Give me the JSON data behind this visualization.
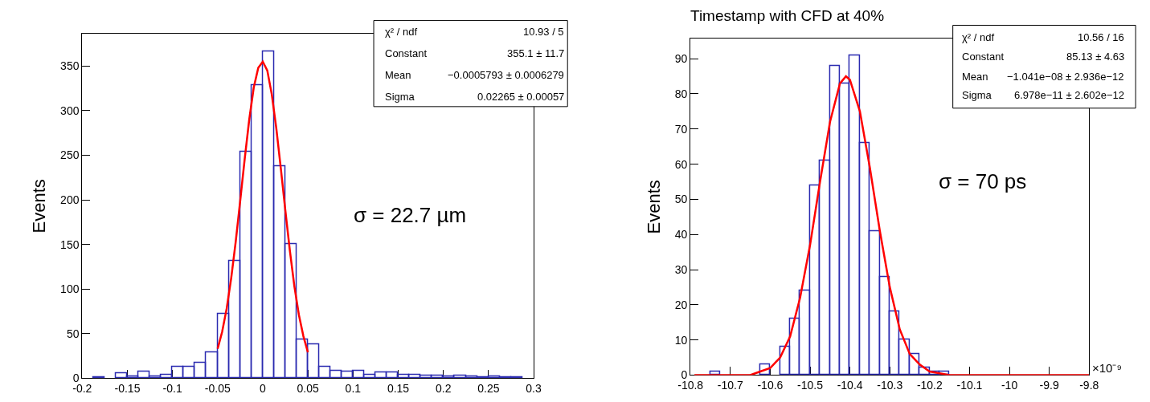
{
  "chart_data": [
    {
      "type": "histogram",
      "ylabel": "Events",
      "annotations": [
        "σ = 22.7 µm",
        "χ² / ndf",
        "10.93 / 5",
        "Constant",
        "355.1 ± 11.7",
        "Mean",
        "−0.0005793 ± 0.0006279",
        "Sigma",
        "0.02265 ± 0.00057"
      ],
      "series": [
        {
          "color": "#2a2ab0",
          "bins": [
            -0.2,
            -0.1875,
            -0.175,
            -0.1625,
            -0.15,
            -0.1375,
            -0.125,
            -0.1125,
            -0.1,
            -0.0875,
            -0.075,
            -0.0625,
            -0.05,
            -0.0375,
            -0.025,
            -0.0125,
            0,
            0.0125,
            0.025,
            0.0375,
            0.05,
            0.0625,
            0.075,
            0.0875,
            0.1,
            0.1125,
            0.125,
            0.1375,
            0.15,
            0.1625,
            0.175,
            0.1875,
            0.2,
            0.2125,
            0.225,
            0.2375,
            0.25,
            0.2625,
            0.275,
            0.2875,
            0.3
          ],
          "values": [
            0,
            1,
            0,
            5,
            2,
            7,
            2,
            4,
            13,
            13,
            17,
            29,
            72,
            131,
            254,
            328,
            366,
            238,
            150,
            43,
            38,
            13,
            8,
            7,
            8,
            4,
            6,
            6,
            4,
            4,
            3,
            3,
            2,
            3,
            2,
            1,
            2,
            1,
            1,
            0
          ]
        },
        {
          "type": "line",
          "color": "#ff0000",
          "x": [
            -0.05,
            -0.045,
            -0.04,
            -0.035,
            -0.03,
            -0.025,
            -0.02,
            -0.015,
            -0.01,
            -0.005,
            0,
            0.005,
            0.01,
            0.015,
            0.02,
            0.025,
            0.03,
            0.035,
            0.04,
            0.045,
            0.05
          ],
          "values": [
            33,
            52,
            78,
            112,
            153,
            199,
            246,
            290,
            326,
            348,
            355,
            345,
            318,
            280,
            235,
            188,
            143,
            103,
            71,
            47,
            29
          ]
        }
      ],
      "xlim": [
        -0.2,
        0.3
      ],
      "xticks": [
        -0.2,
        -0.15,
        -0.1,
        -0.05,
        0,
        0.05,
        0.1,
        0.15,
        0.2,
        0.25,
        0.3
      ],
      "ylim": [
        0,
        386
      ],
      "yticks": [
        0,
        50,
        100,
        150,
        200,
        250,
        300,
        350
      ]
    },
    {
      "type": "histogram",
      "title": "Timestamp with CFD at 40%",
      "ylabel": "Events",
      "annotations": [
        "σ = 70 ps",
        "×10⁻⁹",
        "χ² / ndf",
        "10.56 / 16",
        "Constant",
        "85.13 ± 4.63",
        "Mean",
        "−1.041e−08 ± 2.936e−12",
        "Sigma",
        "6.978e−11 ± 2.602e−12"
      ],
      "series": [
        {
          "color": "#2a2ab0",
          "bins": [
            -10.8,
            -10.775,
            -10.75,
            -10.725,
            -10.7,
            -10.675,
            -10.65,
            -10.625,
            -10.6,
            -10.575,
            -10.55,
            -10.525,
            -10.5,
            -10.475,
            -10.45,
            -10.425,
            -10.4,
            -10.375,
            -10.35,
            -10.325,
            -10.3,
            -10.275,
            -10.25,
            -10.225,
            -10.2,
            -10.175,
            -10.15,
            -10.125,
            -10.1,
            -10.075,
            -10.05,
            -10.025,
            -10,
            -9.975,
            -9.95,
            -9.925,
            -9.9,
            -9.875,
            -9.85,
            -9.825,
            -9.8
          ],
          "values": [
            0,
            0,
            1,
            0,
            0,
            0,
            0,
            3,
            0,
            8,
            16,
            24,
            54,
            61,
            88,
            83,
            91,
            66,
            41,
            28,
            18,
            10,
            6,
            2,
            1,
            1,
            0,
            0,
            0,
            0,
            0,
            0,
            0,
            0,
            0,
            0,
            0,
            0,
            0,
            0
          ]
        },
        {
          "type": "line",
          "color": "#ff0000",
          "x": [
            -10.79,
            -10.69,
            -10.65,
            -10.625,
            -10.6,
            -10.575,
            -10.55,
            -10.525,
            -10.5,
            -10.475,
            -10.45,
            -10.425,
            -10.41,
            -10.4,
            -10.375,
            -10.35,
            -10.325,
            -10.3,
            -10.275,
            -10.25,
            -10.225,
            -10.2,
            -10.15,
            -9.8
          ],
          "values": [
            0,
            0,
            0,
            1,
            2,
            5,
            11,
            22,
            37,
            55,
            72,
            83,
            85,
            84,
            75,
            59,
            41,
            25,
            13,
            6,
            3,
            1,
            0,
            0
          ]
        }
      ],
      "xlim": [
        -10.8,
        -9.8
      ],
      "xticks": [
        -10.8,
        -10.7,
        -10.6,
        -10.5,
        -10.4,
        -10.3,
        -10.2,
        -10.1,
        -10,
        -9.9,
        -9.8
      ],
      "ylim": [
        0,
        95.7
      ],
      "yticks": [
        0,
        10,
        20,
        30,
        40,
        50,
        60,
        70,
        80,
        90
      ]
    }
  ]
}
